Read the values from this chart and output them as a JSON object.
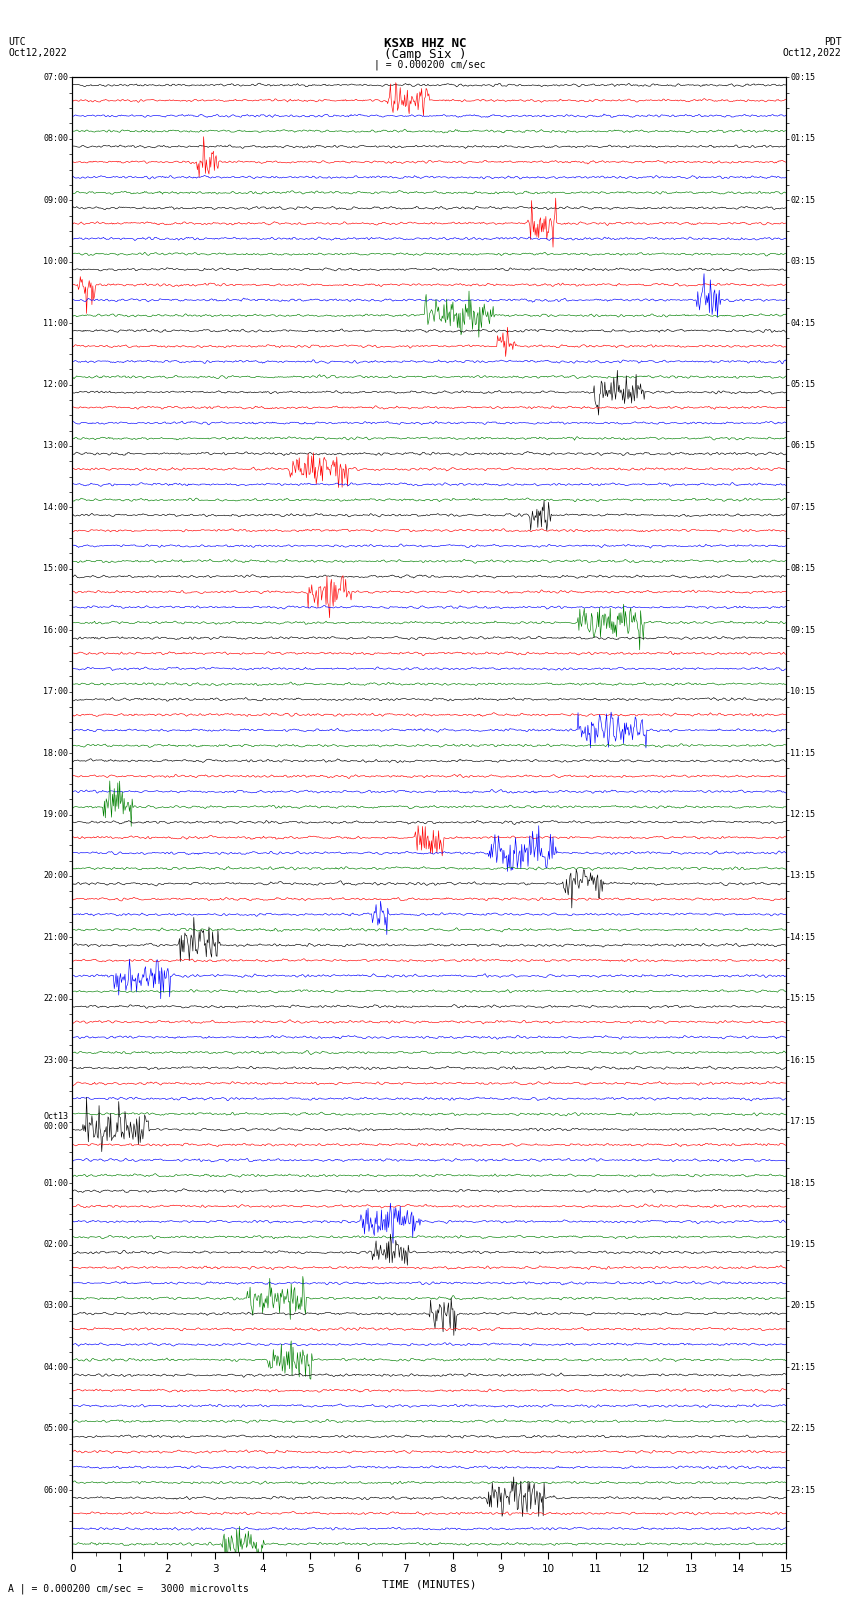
{
  "title": "KSXB HHZ NC",
  "subtitle": "(Camp Six )",
  "left_header_line1": "UTC",
  "left_header_line2": "Oct12,2022",
  "right_header_line1": "PDT",
  "right_header_line2": "Oct12,2022",
  "scale_text": "A | = 0.000200 cm/sec =   3000 microvolts",
  "scale_bar_label": "| = 0.000200 cm/sec",
  "xlabel": "TIME (MINUTES)",
  "colors": [
    "black",
    "red",
    "blue",
    "green"
  ],
  "utc_labels": [
    "07:00",
    "",
    "",
    "",
    "08:00",
    "",
    "",
    "",
    "09:00",
    "",
    "",
    "",
    "10:00",
    "",
    "",
    "",
    "11:00",
    "",
    "",
    "",
    "12:00",
    "",
    "",
    "",
    "13:00",
    "",
    "",
    "",
    "14:00",
    "",
    "",
    "",
    "15:00",
    "",
    "",
    "",
    "16:00",
    "",
    "",
    "",
    "17:00",
    "",
    "",
    "",
    "18:00",
    "",
    "",
    "",
    "19:00",
    "",
    "",
    "",
    "20:00",
    "",
    "",
    "",
    "21:00",
    "",
    "",
    "",
    "22:00",
    "",
    "",
    "",
    "23:00",
    "",
    "",
    "",
    "Oct13\n00:00",
    "",
    "",
    "",
    "01:00",
    "",
    "",
    "",
    "02:00",
    "",
    "",
    "",
    "03:00",
    "",
    "",
    "",
    "04:00",
    "",
    "",
    "",
    "05:00",
    "",
    "",
    "",
    "06:00",
    "",
    "",
    ""
  ],
  "pdt_labels": [
    "00:15",
    "",
    "",
    "",
    "01:15",
    "",
    "",
    "",
    "02:15",
    "",
    "",
    "",
    "03:15",
    "",
    "",
    "",
    "04:15",
    "",
    "",
    "",
    "05:15",
    "",
    "",
    "",
    "06:15",
    "",
    "",
    "",
    "07:15",
    "",
    "",
    "",
    "08:15",
    "",
    "",
    "",
    "09:15",
    "",
    "",
    "",
    "10:15",
    "",
    "",
    "",
    "11:15",
    "",
    "",
    "",
    "12:15",
    "",
    "",
    "",
    "13:15",
    "",
    "",
    "",
    "14:15",
    "",
    "",
    "",
    "15:15",
    "",
    "",
    "",
    "16:15",
    "",
    "",
    "",
    "17:15",
    "",
    "",
    "",
    "18:15",
    "",
    "",
    "",
    "19:15",
    "",
    "",
    "",
    "20:15",
    "",
    "",
    "",
    "21:15",
    "",
    "",
    "",
    "22:15",
    "",
    "",
    "",
    "23:15",
    "",
    "",
    ""
  ],
  "n_rows": 96,
  "minutes_per_row": 15,
  "amplitude": 0.38,
  "noise_seed": 42,
  "bg_color": "white",
  "trace_linewidth": 0.45,
  "figsize": [
    8.5,
    16.13
  ],
  "dpi": 100
}
